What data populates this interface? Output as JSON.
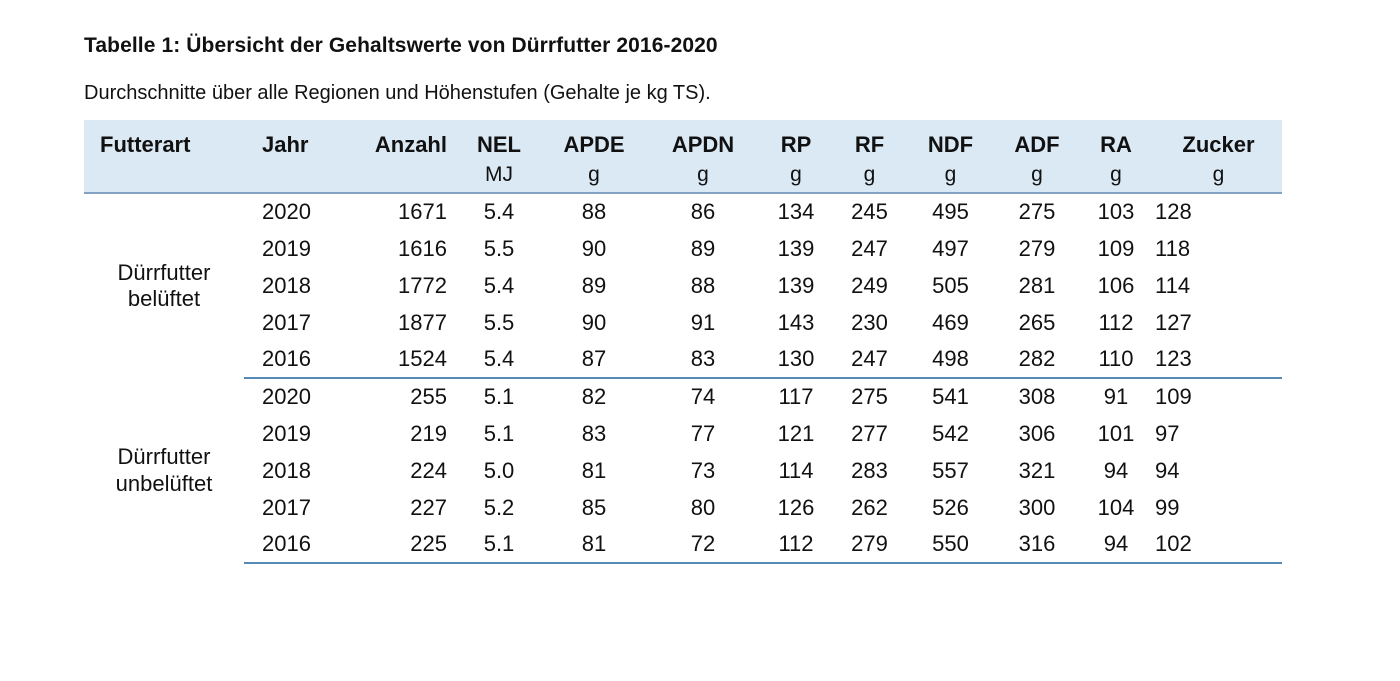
{
  "title": "Tabelle 1: Übersicht der Gehaltswerte von Dürrfutter 2016-2020",
  "subtitle": "Durchschnitte über alle Regionen und Höhenstufen (Gehalte je kg TS).",
  "colors": {
    "header_bg": "#dbe9f5",
    "header_rule": "#85a3c2",
    "divider": "#5589b6",
    "text": "#111111"
  },
  "table": {
    "columns": [
      {
        "label": "Futterart",
        "unit": ""
      },
      {
        "label": "Jahr",
        "unit": ""
      },
      {
        "label": "Anzahl",
        "unit": ""
      },
      {
        "label": "NEL",
        "unit": "MJ"
      },
      {
        "label": "APDE",
        "unit": "g"
      },
      {
        "label": "APDN",
        "unit": "g"
      },
      {
        "label": "RP",
        "unit": "g"
      },
      {
        "label": "RF",
        "unit": "g"
      },
      {
        "label": "NDF",
        "unit": "g"
      },
      {
        "label": "ADF",
        "unit": "g"
      },
      {
        "label": "RA",
        "unit": "g"
      },
      {
        "label": "Zucker",
        "unit": "g"
      }
    ],
    "groups": [
      {
        "name": "Dürrfutter belüftet",
        "rows": [
          [
            "2020",
            "1671",
            "5.4",
            "88",
            "86",
            "134",
            "245",
            "495",
            "275",
            "103",
            "128"
          ],
          [
            "2019",
            "1616",
            "5.5",
            "90",
            "89",
            "139",
            "247",
            "497",
            "279",
            "109",
            "118"
          ],
          [
            "2018",
            "1772",
            "5.4",
            "89",
            "88",
            "139",
            "249",
            "505",
            "281",
            "106",
            "114"
          ],
          [
            "2017",
            "1877",
            "5.5",
            "90",
            "91",
            "143",
            "230",
            "469",
            "265",
            "112",
            "127"
          ],
          [
            "2016",
            "1524",
            "5.4",
            "87",
            "83",
            "130",
            "247",
            "498",
            "282",
            "110",
            "123"
          ]
        ]
      },
      {
        "name": "Dürrfutter unbelüftet",
        "rows": [
          [
            "2020",
            "255",
            "5.1",
            "82",
            "74",
            "117",
            "275",
            "541",
            "308",
            "91",
            "109"
          ],
          [
            "2019",
            "219",
            "5.1",
            "83",
            "77",
            "121",
            "277",
            "542",
            "306",
            "101",
            "97"
          ],
          [
            "2018",
            "224",
            "5.0",
            "81",
            "73",
            "114",
            "283",
            "557",
            "321",
            "94",
            "94"
          ],
          [
            "2017",
            "227",
            "5.2",
            "85",
            "80",
            "126",
            "262",
            "526",
            "300",
            "104",
            "99"
          ],
          [
            "2016",
            "225",
            "5.1",
            "81",
            "72",
            "112",
            "279",
            "550",
            "316",
            "94",
            "102"
          ]
        ]
      }
    ]
  }
}
